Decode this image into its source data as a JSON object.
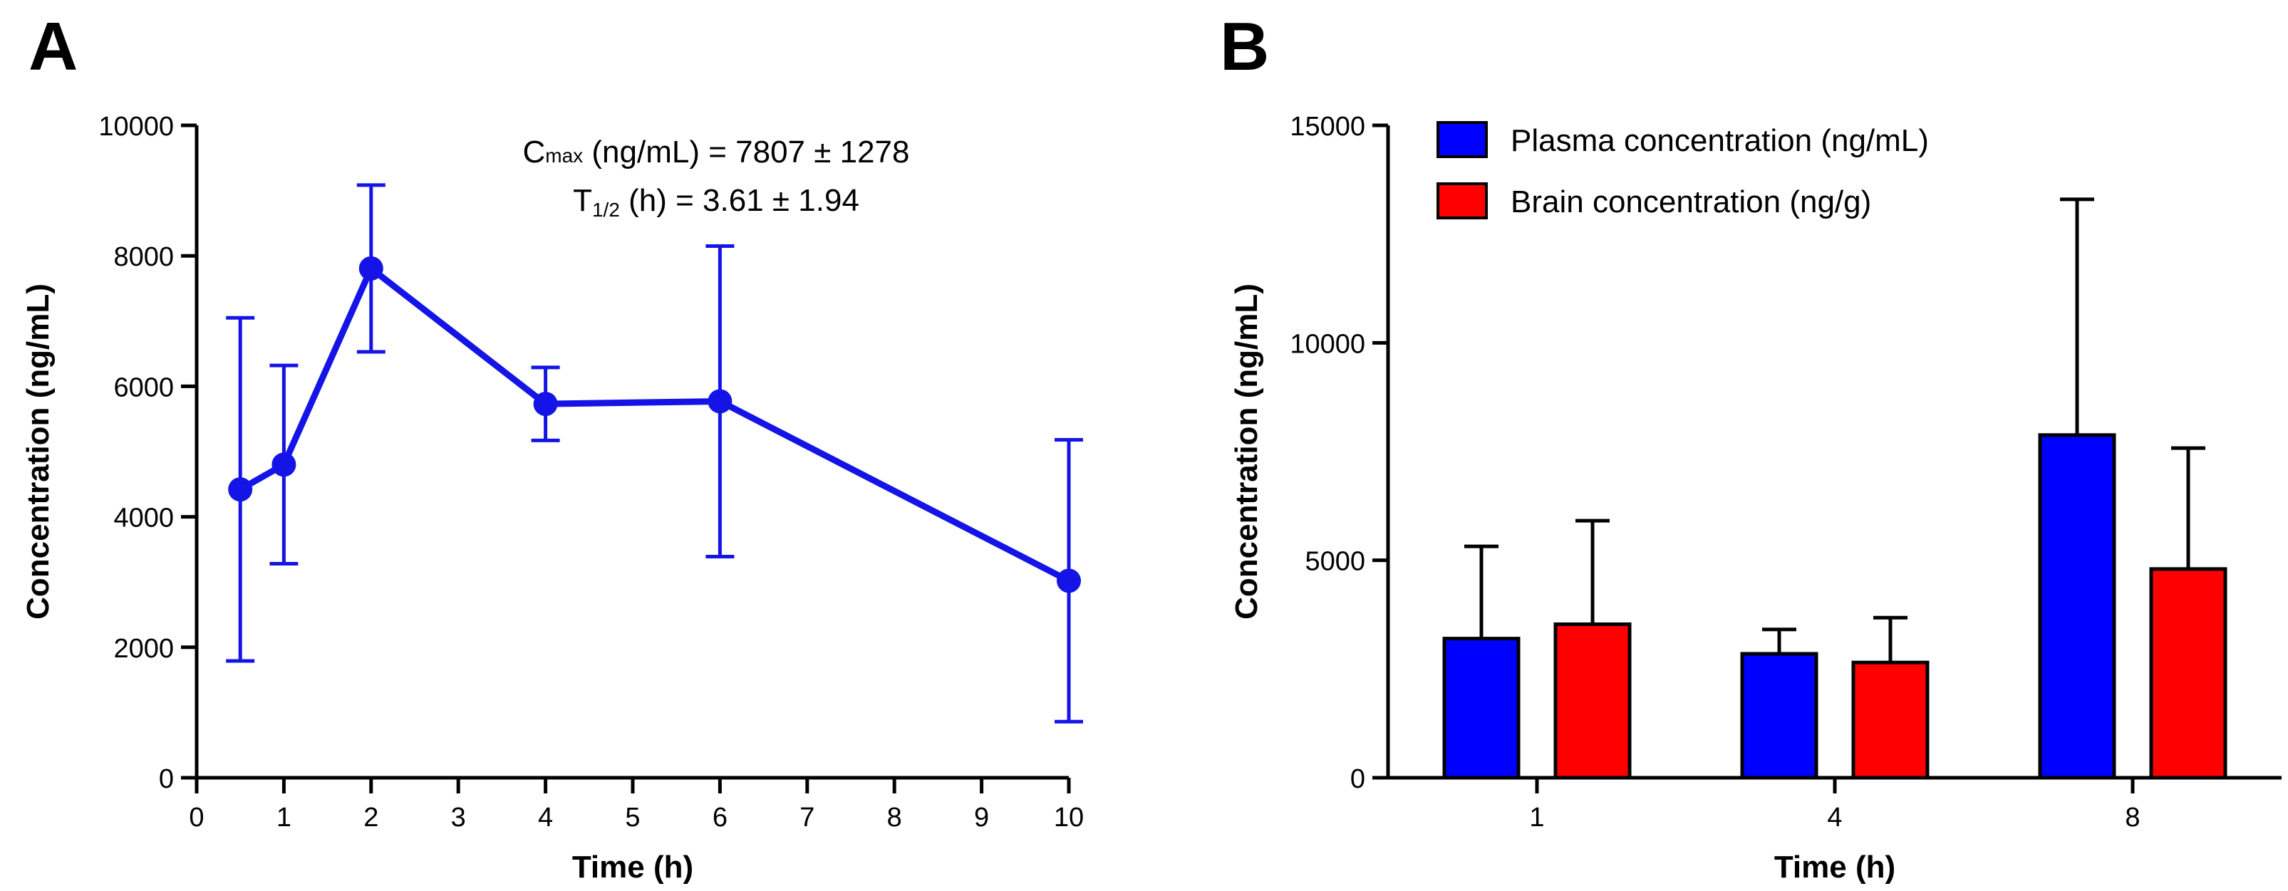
{
  "chart_data": [
    {
      "panel": "A",
      "type": "line",
      "xlabel": "Time (h)",
      "ylabel": "Concentration (ng/mL)",
      "xlim": [
        0,
        10
      ],
      "ylim": [
        0,
        10000
      ],
      "xticks": [
        0,
        1,
        2,
        3,
        4,
        5,
        6,
        7,
        8,
        9,
        10
      ],
      "yticks": [
        0,
        2000,
        4000,
        6000,
        8000,
        10000
      ],
      "color": "#1414e6",
      "series": [
        {
          "name": "Plasma",
          "x": [
            0.5,
            1,
            2,
            4,
            6,
            10
          ],
          "y": [
            4420,
            4800,
            7807,
            5730,
            5770,
            3020
          ],
          "err": [
            2630,
            1520,
            1278,
            560,
            2380,
            2160
          ]
        }
      ],
      "annotations": {
        "cmax": {
          "main": "C",
          "sub": "max",
          "rest": " (ng/mL) = 7807 ± 1278"
        },
        "t_half": {
          "main": "T",
          "sub": "1/2",
          "rest": " (h) = 3.61 ± 1.94"
        }
      }
    },
    {
      "panel": "B",
      "type": "bar",
      "xlabel": "Time (h)",
      "ylabel": "Concentration (ng/mL)",
      "ylim": [
        0,
        15000
      ],
      "yticks": [
        0,
        5000,
        10000,
        15000
      ],
      "categories": [
        "1",
        "4",
        "8"
      ],
      "series": [
        {
          "name": "Plasma concentration (ng/mL)",
          "color": "#0000ff",
          "values": [
            3200,
            2850,
            7880
          ],
          "err": [
            2120,
            560,
            5420
          ]
        },
        {
          "name": "Brain concentration (ng/g)",
          "color": "#ff0000",
          "values": [
            3530,
            2650,
            4800
          ],
          "err": [
            2380,
            1030,
            2780
          ]
        }
      ],
      "legend_position": "top-left"
    }
  ]
}
